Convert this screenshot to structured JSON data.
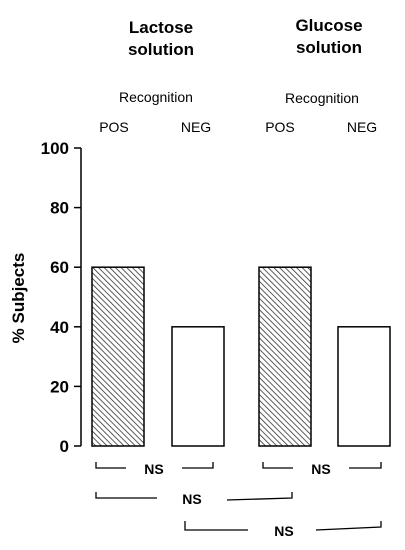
{
  "chart_data": {
    "type": "bar",
    "groups": [
      {
        "title_lines": [
          "Lactose",
          "solution"
        ],
        "subtitle": "Recognition",
        "categories": [
          "POS",
          "NEG"
        ],
        "values": [
          60,
          40
        ]
      },
      {
        "title_lines": [
          "Glucose",
          "solution"
        ],
        "subtitle": "Recognition",
        "categories": [
          "POS",
          "NEG"
        ],
        "values": [
          60,
          40
        ]
      }
    ],
    "ylabel": "% Subjects",
    "ylim": [
      0,
      100
    ],
    "yticks": [
      0,
      20,
      40,
      60,
      80,
      100
    ],
    "bar_styles": [
      "hatched",
      "white"
    ],
    "comparisons": [
      {
        "label": "NS",
        "from": "Lactose POS",
        "to": "Lactose NEG"
      },
      {
        "label": "NS",
        "from": "Glucose POS",
        "to": "Glucose NEG"
      },
      {
        "label": "NS",
        "from": "Lactose POS",
        "to": "Glucose POS"
      },
      {
        "label": "NS",
        "from": "Lactose NEG",
        "to": "Glucose NEG"
      }
    ],
    "grid": false
  }
}
